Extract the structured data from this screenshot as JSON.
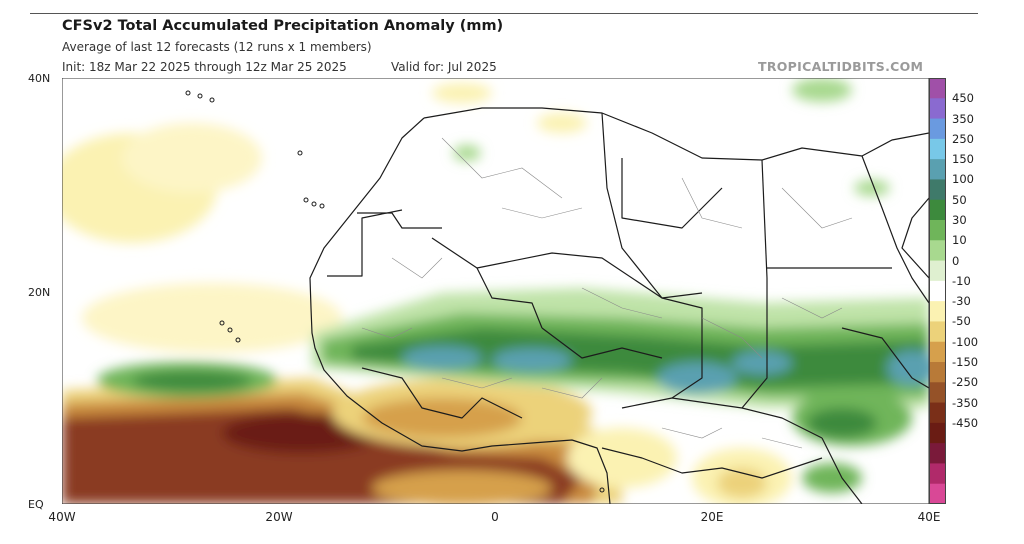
{
  "header": {
    "title": "CFSv2 Total Accumulated Precipitation Anomaly (mm)",
    "subtitle": "Average of last 12 forecasts (12 runs x 1 members)",
    "init": "Init: 18z Mar 22 2025 through 12z Mar 25 2025",
    "valid": "Valid for: Jul 2025",
    "source": "TROPICALTIDBITS.COM"
  },
  "map": {
    "lat_labels": [
      "40N",
      "20N",
      "EQ"
    ],
    "lon_labels": [
      "40W",
      "20W",
      "0",
      "20E",
      "40E"
    ],
    "lat_range": [
      0,
      40
    ],
    "lon_range": [
      -40,
      40
    ],
    "colors": {
      "ocean": "#ffffff",
      "border": "#1c1c1c",
      "admin_line": "#8a8a8a"
    }
  },
  "colorbar": {
    "levels": [
      "450",
      "350",
      "250",
      "150",
      "100",
      "50",
      "30",
      "10",
      "0",
      "-10",
      "-30",
      "-50",
      "-100",
      "-150",
      "-250",
      "-350",
      "-450"
    ],
    "colors": [
      "#a050a8",
      "#8a6ad0",
      "#6a9ae0",
      "#78c8e8",
      "#5aa0b0",
      "#3f7a6a",
      "#3d8a3d",
      "#6fb55a",
      "#a8d98f",
      "#dff0d0",
      "#ffffff",
      "#fbf2b2",
      "#ecd27a",
      "#d6a04c",
      "#b87a38",
      "#955228",
      "#7a2f18",
      "#6a1c14",
      "#7a1a3a",
      "#b02a6a",
      "#d94896"
    ]
  }
}
